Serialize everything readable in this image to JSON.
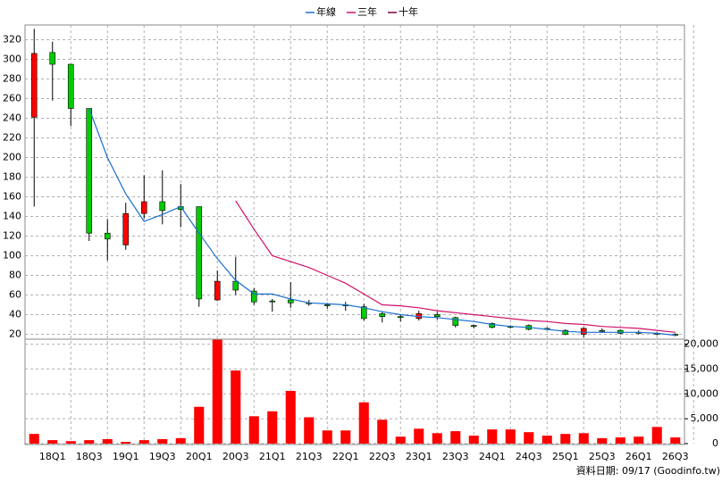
{
  "chart_data": {
    "type": "candlestick",
    "categories": [
      null,
      "18Q1",
      null,
      "18Q3",
      null,
      "19Q1",
      null,
      "19Q3",
      null,
      "20Q1",
      null,
      "20Q3",
      null,
      "21Q1",
      null,
      "21Q3",
      null,
      "22Q1",
      null,
      "22Q3",
      null,
      "23Q1",
      null,
      "23Q3",
      null,
      "24Q1",
      null,
      "24Q3",
      null,
      "25Q1",
      null,
      "25Q3",
      null,
      "26Q1",
      null,
      "26Q3"
    ],
    "open": [
      241,
      307,
      295,
      250,
      123,
      111,
      143,
      155,
      150,
      150,
      55,
      74,
      64,
      54,
      55,
      52,
      50,
      50,
      48,
      41,
      38,
      36,
      40,
      37,
      29,
      31,
      28,
      29,
      26,
      24,
      20,
      24,
      24,
      22,
      21,
      20
    ],
    "high": [
      331,
      318,
      295,
      250,
      137,
      154,
      182,
      187,
      173,
      150,
      85,
      99,
      67,
      56,
      73,
      55,
      52,
      53,
      51,
      43,
      40,
      44,
      43,
      38,
      30,
      32,
      29,
      30,
      27,
      25,
      27,
      26,
      25,
      24,
      22,
      21
    ],
    "low": [
      150,
      258,
      232,
      115,
      95,
      106,
      138,
      132,
      129,
      48,
      54,
      60,
      50,
      43,
      47,
      49,
      46,
      44,
      34,
      32,
      33,
      34,
      35,
      27,
      26,
      26,
      26,
      24,
      24,
      19,
      17,
      22,
      20,
      20,
      19,
      18
    ],
    "close": [
      306,
      295,
      250,
      123,
      117,
      143,
      155,
      146,
      147,
      56,
      74,
      65,
      53,
      53,
      52,
      51,
      49,
      49,
      36,
      38,
      37,
      41,
      38,
      29,
      28,
      27,
      27,
      25,
      25,
      20,
      26,
      23,
      21,
      21,
      20,
      19
    ],
    "up_color": "#ff0000",
    "down_color": "#00cc00",
    "lines": [
      {
        "name": "年線",
        "color": "#1a6fd0",
        "values": [
          null,
          null,
          null,
          250,
          200,
          163,
          135,
          142,
          150,
          123,
          97,
          75,
          61,
          61,
          56,
          52,
          51,
          50,
          47,
          43,
          40,
          38,
          37,
          35,
          33,
          30,
          28,
          27,
          25,
          23,
          22,
          22,
          22,
          22,
          21,
          19
        ]
      },
      {
        "name": "三年",
        "color": "#d0106a",
        "values": [
          null,
          null,
          null,
          null,
          null,
          null,
          null,
          null,
          null,
          null,
          null,
          156,
          127,
          100,
          94,
          88,
          80,
          72,
          61,
          50,
          49,
          47,
          44,
          42,
          40,
          38,
          36,
          34,
          33,
          31,
          30,
          28,
          27,
          26,
          24,
          22
        ]
      },
      {
        "name": "十年",
        "color": "#800040",
        "values": [
          null,
          null,
          null,
          null,
          null,
          null,
          null,
          null,
          null,
          null,
          null,
          null,
          null,
          null,
          null,
          null,
          null,
          null,
          null,
          null,
          null,
          null,
          null,
          null,
          null,
          null,
          null,
          null,
          null,
          null,
          null,
          null,
          null,
          null,
          null,
          null
        ]
      }
    ],
    "volume": {
      "color": "#ff0000",
      "axis": "y2",
      "values": [
        1950,
        700,
        500,
        700,
        900,
        350,
        700,
        900,
        1100,
        7400,
        20900,
        14700,
        5500,
        6500,
        10600,
        5300,
        2650,
        2650,
        8300,
        4800,
        1400,
        3000,
        2100,
        2500,
        1600,
        2850,
        2850,
        2300,
        1600,
        1950,
        2100,
        1100,
        1250,
        1400,
        3350,
        1250
      ]
    },
    "ylim": [
      15,
      335
    ],
    "yticks": [
      20,
      40,
      60,
      80,
      100,
      120,
      140,
      160,
      180,
      200,
      220,
      240,
      260,
      280,
      300,
      320
    ],
    "y2lim": [
      0,
      21000
    ],
    "y2ticks": [
      0,
      {
        "value": 5000,
        "label": "5,000"
      },
      {
        "value": 10000,
        "label": "10,000"
      },
      {
        "value": 15000,
        "label": "15,000"
      },
      {
        "value": 20000,
        "label": "20,000"
      }
    ],
    "grid": true,
    "legend": "top",
    "footer": "資料日期: 09/17 (Goodinfo.tw)"
  }
}
